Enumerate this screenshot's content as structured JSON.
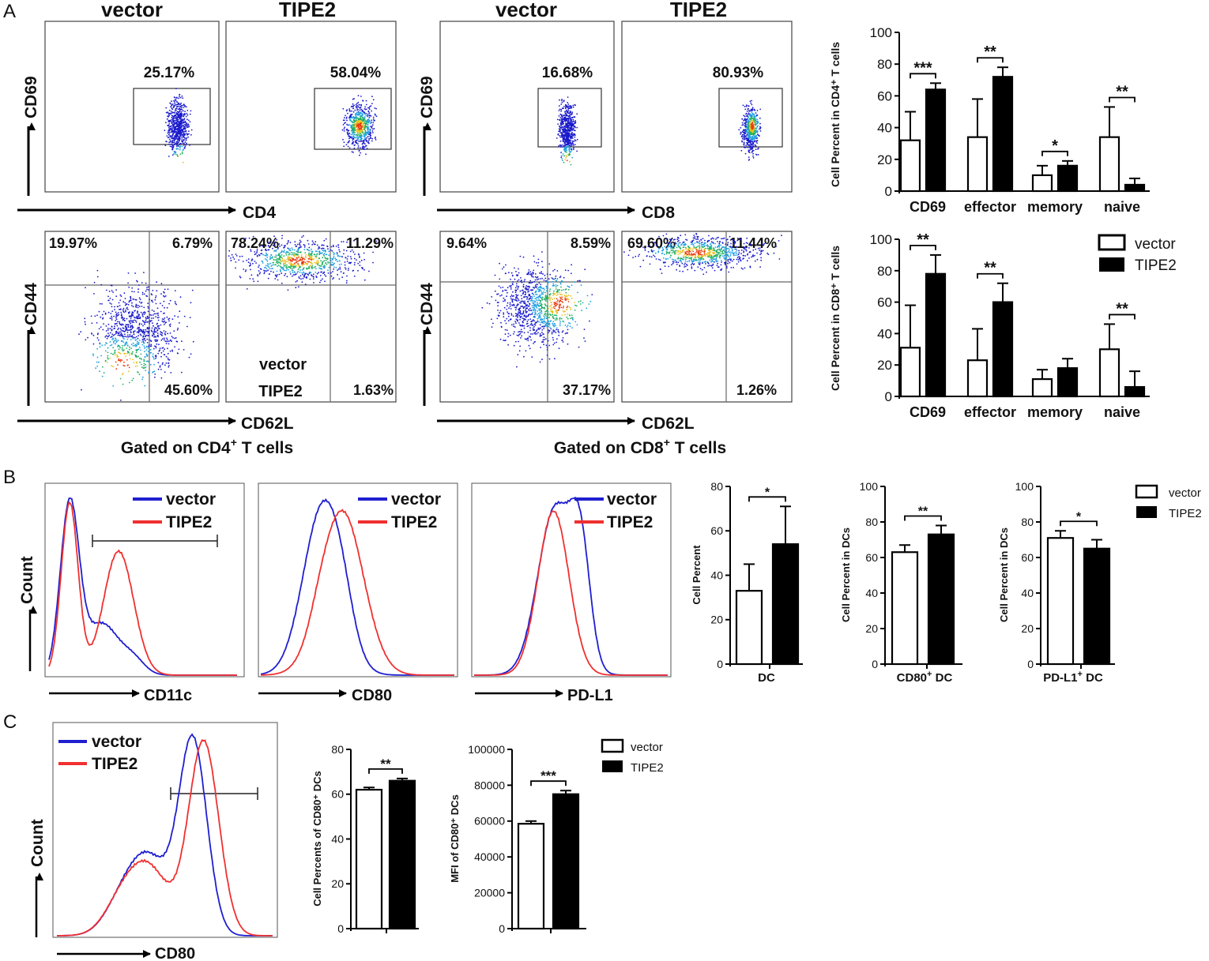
{
  "panel_labels": {
    "a": "A",
    "b": "B",
    "c": "C"
  },
  "a": {
    "titles": [
      "vector",
      "TIPE2",
      "vector",
      "TIPE2"
    ],
    "cd69_axis": "CD69",
    "cd44_axis": "CD44",
    "cd4_axis": "CD4",
    "cd8_axis": "CD8",
    "cd62l_axis": "CD62L",
    "gate_cd4_prefix": "Gated on CD4",
    "gate_cd8_prefix": "Gated on CD8",
    "gate_sup": "+",
    "gate_suffix": " T cells",
    "cd69_percents": [
      "25.17%",
      "58.04%",
      "16.68%",
      "80.93%"
    ],
    "quad_cd4_vector": [
      "19.97%",
      "6.79%",
      "45.60%"
    ],
    "quad_cd4_tipe2": [
      "78.24%",
      "11.29%",
      "1.63%"
    ],
    "quad_cd8_vector": [
      "9.64%",
      "8.59%",
      "37.17%"
    ],
    "quad_cd8_tipe2": [
      "69.60%",
      "11.44%",
      "1.26%"
    ],
    "inplot_vector": "vector",
    "inplot_tipe2": "TIPE2"
  },
  "b": {
    "hist_axes": [
      "CD11c",
      "CD80",
      "PD-L1"
    ],
    "count_label": "Count",
    "dc_label": "DC",
    "cd80_dc_prefix": "CD80",
    "pdl1_dc_prefix": "PD-L1",
    "sup": "+",
    "dc_suffix": " DC"
  },
  "c": {
    "hist_axis": "CD80",
    "count_label": "Count"
  },
  "legend": {
    "vector": "vector",
    "tipe2": "TIPE2"
  },
  "colors": {
    "vector": "#1f1fd0",
    "tipe2": "#f03030"
  },
  "chart_data": [
    {
      "id": "a_cd4",
      "type": "bar",
      "title": "",
      "ylabel": "Cell Percent in CD4⁺ T cells",
      "categories": [
        "CD69",
        "effector",
        "memory",
        "naive"
      ],
      "ylim": [
        0,
        100
      ],
      "yticks": [
        0,
        20,
        40,
        60,
        80,
        100
      ],
      "series": [
        {
          "name": "vector",
          "values": [
            32,
            34,
            10,
            34
          ],
          "errors": [
            18,
            24,
            6,
            19
          ]
        },
        {
          "name": "TIPE2",
          "values": [
            64,
            72,
            16,
            4
          ],
          "errors": [
            4,
            6,
            3,
            4
          ]
        }
      ],
      "significance": [
        "***",
        "**",
        "*",
        "**"
      ]
    },
    {
      "id": "a_cd8",
      "type": "bar",
      "title": "",
      "ylabel": "Cell Percent in CD8⁺ T cells",
      "categories": [
        "CD69",
        "effector",
        "memory",
        "naive"
      ],
      "ylim": [
        0,
        100
      ],
      "yticks": [
        0,
        20,
        40,
        60,
        80,
        100
      ],
      "series": [
        {
          "name": "vector",
          "values": [
            31,
            23,
            11,
            30
          ],
          "errors": [
            27,
            20,
            6,
            16
          ]
        },
        {
          "name": "TIPE2",
          "values": [
            78,
            60,
            18,
            6
          ],
          "errors": [
            12,
            12,
            6,
            10
          ]
        }
      ],
      "significance": [
        "**",
        "**",
        "",
        "**"
      ]
    },
    {
      "id": "b_dc",
      "type": "bar",
      "ylabel": "Cell Percent",
      "xlabel": "DC",
      "categories": [
        "DC"
      ],
      "ylim": [
        0,
        80
      ],
      "yticks": [
        0,
        20,
        40,
        60,
        80
      ],
      "series": [
        {
          "name": "vector",
          "values": [
            33
          ],
          "errors": [
            12
          ]
        },
        {
          "name": "TIPE2",
          "values": [
            54
          ],
          "errors": [
            17
          ]
        }
      ],
      "significance": [
        "*"
      ]
    },
    {
      "id": "b_cd80dc",
      "type": "bar",
      "ylabel": "Cell Percent in DCs",
      "xlabel": "CD80⁺ DC",
      "categories": [
        "CD80+ DC"
      ],
      "ylim": [
        0,
        100
      ],
      "yticks": [
        0,
        20,
        40,
        60,
        80,
        100
      ],
      "series": [
        {
          "name": "vector",
          "values": [
            63
          ],
          "errors": [
            4
          ]
        },
        {
          "name": "TIPE2",
          "values": [
            73
          ],
          "errors": [
            5
          ]
        }
      ],
      "significance": [
        "**"
      ]
    },
    {
      "id": "b_pdl1dc",
      "type": "bar",
      "ylabel": "Cell Percent in DCs",
      "xlabel": "PD-L1⁺ DC",
      "categories": [
        "PD-L1+ DC"
      ],
      "ylim": [
        0,
        100
      ],
      "yticks": [
        0,
        20,
        40,
        60,
        80,
        100
      ],
      "series": [
        {
          "name": "vector",
          "values": [
            71
          ],
          "errors": [
            4
          ]
        },
        {
          "name": "TIPE2",
          "values": [
            65
          ],
          "errors": [
            5
          ]
        }
      ],
      "significance": [
        "*"
      ]
    },
    {
      "id": "c_pct",
      "type": "bar",
      "ylabel": "Cell Percents of CD80⁺ DCs",
      "categories": [
        ""
      ],
      "ylim": [
        0,
        80
      ],
      "yticks": [
        0,
        20,
        40,
        60,
        80
      ],
      "series": [
        {
          "name": "vector",
          "values": [
            62
          ],
          "errors": [
            1
          ]
        },
        {
          "name": "TIPE2",
          "values": [
            66
          ],
          "errors": [
            1
          ]
        }
      ],
      "significance": [
        "**"
      ]
    },
    {
      "id": "c_mfi",
      "type": "bar",
      "ylabel": "MFI of CD80⁺ DCs",
      "categories": [
        ""
      ],
      "ylim": [
        0,
        100000
      ],
      "yticks": [
        0,
        20000,
        40000,
        60000,
        80000,
        100000
      ],
      "series": [
        {
          "name": "vector",
          "values": [
            58500
          ],
          "errors": [
            1500
          ]
        },
        {
          "name": "TIPE2",
          "values": [
            75000
          ],
          "errors": [
            2000
          ]
        }
      ],
      "significance": [
        "***"
      ]
    }
  ]
}
